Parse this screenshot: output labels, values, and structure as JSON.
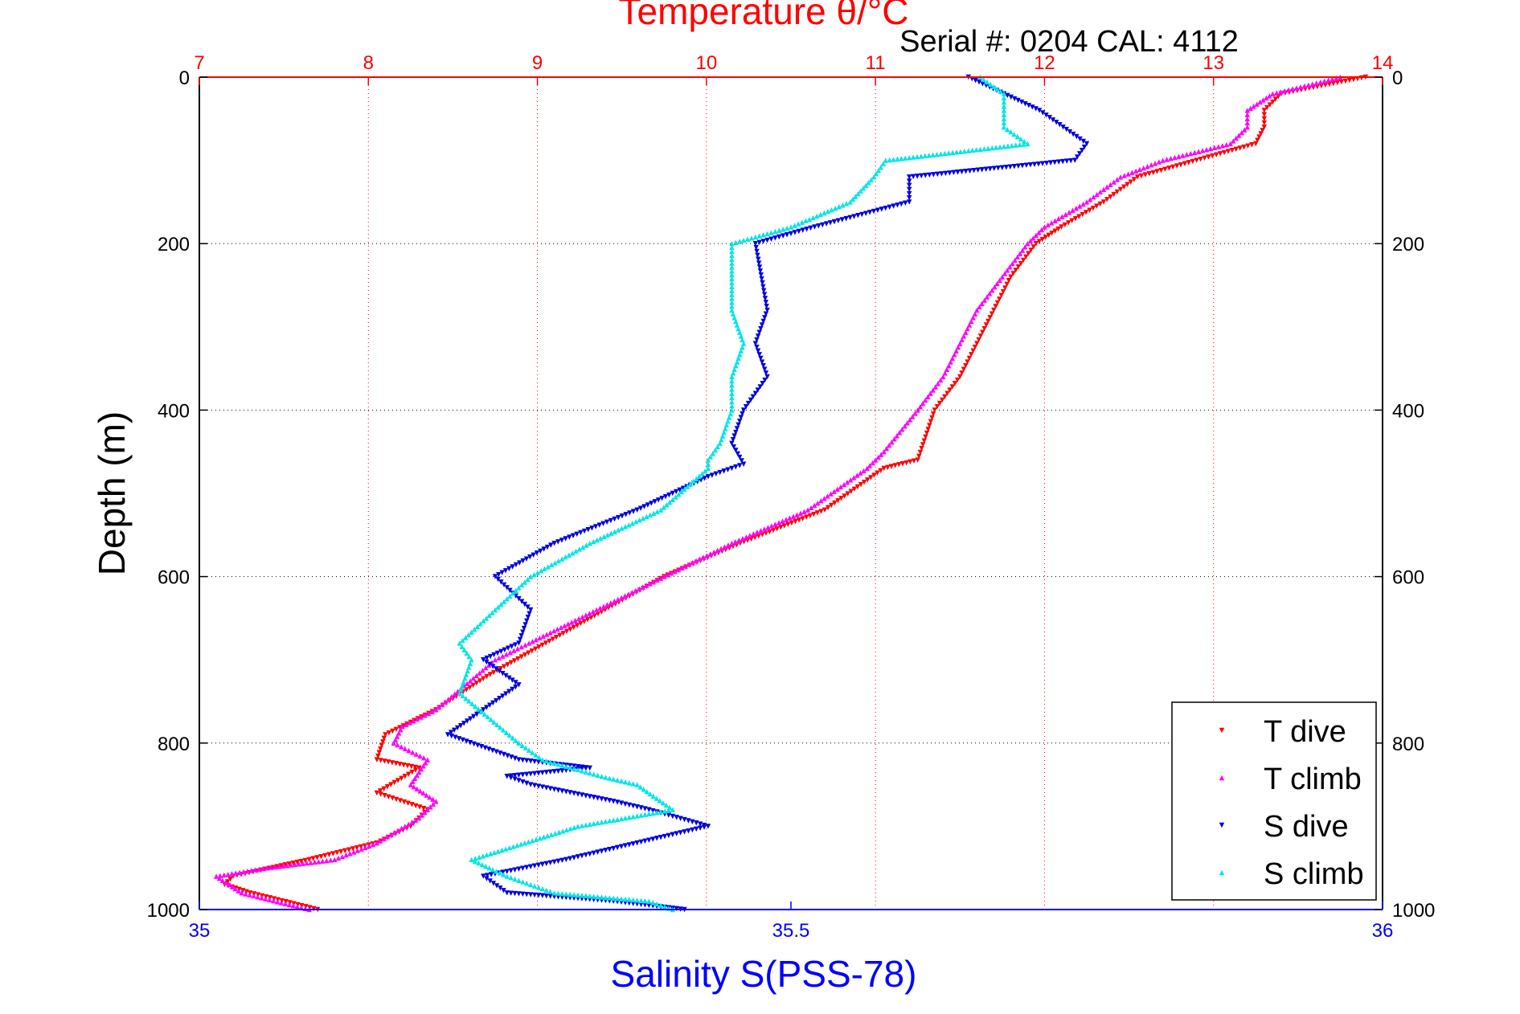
{
  "title": "Temperature θ/°C",
  "serial_label": "Serial #: 0204  CAL: 4112",
  "colors": {
    "temperature": "#ff0000",
    "salinity": "#0000ff",
    "t_dive": "#ff0000",
    "t_climb": "#ff00ff",
    "s_dive": "#0000dd",
    "s_climb": "#00e5e5"
  },
  "chart_data": {
    "type": "scatter",
    "y_axis": {
      "label": "Depth (m)",
      "range": [
        0,
        1000
      ],
      "reversed": true,
      "ticks": [
        "0",
        "200",
        "400",
        "600",
        "800",
        "1000"
      ]
    },
    "x_axis_top": {
      "label": "Temperature θ/°C",
      "range": [
        7,
        14
      ],
      "ticks": [
        "7",
        "8",
        "9",
        "10",
        "11",
        "12",
        "13",
        "14"
      ],
      "grid": true
    },
    "x_axis_bottom": {
      "label": "Salinity S(PSS-78)",
      "range": [
        35,
        36
      ],
      "ticks": [
        "35",
        "35.5",
        "36"
      ]
    },
    "grid": true,
    "legend_position": "bottom-right",
    "series": [
      {
        "name": "T dive",
        "axis": "temperature",
        "x": [
          13.9,
          13.4,
          13.3,
          13.3,
          13.25,
          12.9,
          12.55,
          12.35,
          12.1,
          11.95,
          11.8,
          11.7,
          11.6,
          11.5,
          11.35,
          11.25,
          11.05,
          10.7,
          10.2,
          9.75,
          9.4,
          9.05,
          8.7,
          8.4,
          8.1,
          8.05,
          8.3,
          8.05,
          8.35,
          8.25,
          8.05,
          7.65,
          7.2,
          7.15,
          7.3,
          7.7
        ],
        "y": [
          0,
          20,
          40,
          60,
          80,
          100,
          120,
          150,
          180,
          200,
          240,
          280,
          320,
          360,
          400,
          460,
          470,
          520,
          560,
          600,
          640,
          680,
          720,
          760,
          790,
          820,
          830,
          860,
          880,
          900,
          920,
          940,
          960,
          970,
          980,
          1000
        ]
      },
      {
        "name": "T climb",
        "axis": "temperature",
        "x": [
          13.75,
          13.35,
          13.2,
          13.2,
          13.1,
          12.7,
          12.45,
          12.25,
          12.0,
          11.9,
          11.75,
          11.6,
          11.5,
          11.4,
          11.25,
          11.05,
          10.95,
          10.6,
          10.15,
          9.75,
          9.35,
          8.95,
          8.75,
          8.4,
          8.2,
          8.15,
          8.35,
          8.25,
          8.4,
          8.3,
          8.05,
          7.8,
          7.4,
          7.1,
          7.25,
          7.65
        ],
        "y": [
          0,
          20,
          40,
          60,
          80,
          100,
          120,
          150,
          180,
          200,
          240,
          280,
          320,
          360,
          400,
          450,
          470,
          520,
          560,
          600,
          640,
          680,
          700,
          760,
          780,
          800,
          820,
          850,
          870,
          890,
          920,
          940,
          950,
          960,
          980,
          1000
        ]
      },
      {
        "name": "S dive",
        "axis": "salinity",
        "x": [
          35.65,
          35.68,
          35.71,
          35.73,
          35.75,
          35.74,
          35.6,
          35.6,
          35.52,
          35.47,
          35.48,
          35.47,
          35.48,
          35.46,
          35.45,
          35.46,
          35.43,
          35.37,
          35.3,
          35.25,
          35.28,
          35.27,
          35.24,
          35.27,
          35.21,
          35.27,
          35.33,
          35.26,
          35.28,
          35.35,
          35.38,
          35.43,
          35.31,
          35.24,
          35.26,
          35.35,
          35.41
        ],
        "y": [
          0,
          20,
          40,
          60,
          80,
          100,
          120,
          150,
          180,
          200,
          280,
          320,
          360,
          400,
          440,
          465,
          480,
          520,
          560,
          600,
          640,
          680,
          700,
          730,
          790,
          820,
          830,
          840,
          850,
          870,
          880,
          900,
          940,
          960,
          980,
          990,
          1000
        ]
      },
      {
        "name": "S climb",
        "axis": "salinity",
        "x": [
          35.66,
          35.68,
          35.68,
          35.68,
          35.7,
          35.58,
          35.57,
          35.55,
          35.5,
          35.45,
          35.45,
          35.46,
          35.45,
          35.45,
          35.44,
          35.43,
          35.43,
          35.39,
          35.33,
          35.28,
          35.25,
          35.22,
          35.23,
          35.22,
          35.27,
          35.29,
          35.34,
          35.37,
          35.4,
          35.32,
          35.23,
          35.26,
          35.3,
          35.38,
          35.4
        ],
        "y": [
          0,
          20,
          40,
          60,
          80,
          100,
          120,
          150,
          180,
          200,
          280,
          320,
          360,
          400,
          440,
          460,
          470,
          520,
          560,
          600,
          640,
          680,
          700,
          740,
          800,
          820,
          840,
          850,
          880,
          900,
          940,
          960,
          980,
          990,
          1000
        ]
      }
    ]
  }
}
